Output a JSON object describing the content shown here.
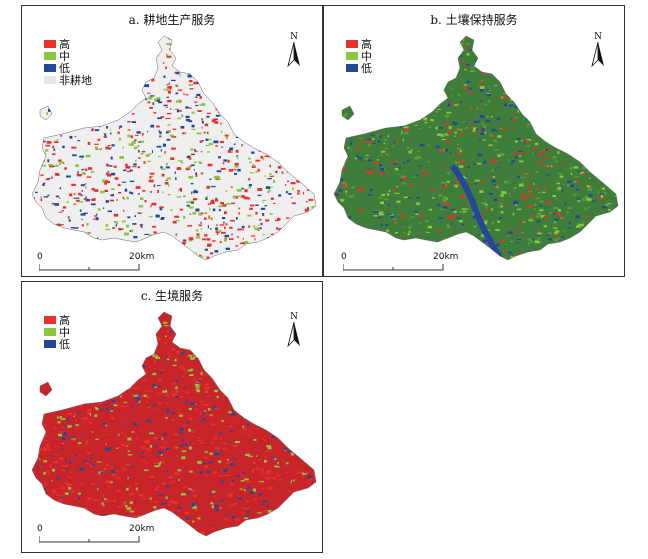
{
  "panels": {
    "a": {
      "title": "a. 耕地生产服务",
      "legend": [
        {
          "label": "高",
          "color": "#e8312b"
        },
        {
          "label": "中",
          "color": "#8cc63f"
        },
        {
          "label": "低",
          "color": "#23489b"
        },
        {
          "label": "非耕地",
          "color": "#e6e6e6"
        }
      ],
      "base_color": "#efefef",
      "mix": [
        "#e8312b",
        "#8cc63f",
        "#23489b",
        "#e8312b"
      ]
    },
    "b": {
      "title": "b. 土壤保持服务",
      "legend": [
        {
          "label": "高",
          "color": "#e8312b"
        },
        {
          "label": "中",
          "color": "#8cc63f"
        },
        {
          "label": "低",
          "color": "#23489b"
        }
      ],
      "base_color": "#3f7d3a",
      "mix": [
        "#8cc63f",
        "#23489b",
        "#5a9a3a",
        "#e8312b"
      ]
    },
    "c": {
      "title": "c. 生境服务",
      "legend": [
        {
          "label": "高",
          "color": "#e8312b"
        },
        {
          "label": "中",
          "color": "#8cc63f"
        },
        {
          "label": "低",
          "color": "#23489b"
        }
      ],
      "base_color": "#c8252a",
      "mix": [
        "#e8312b",
        "#23489b",
        "#8cc63f",
        "#e8312b"
      ]
    }
  },
  "north_label": "N",
  "scale": {
    "zero": "0",
    "end": "20km"
  }
}
